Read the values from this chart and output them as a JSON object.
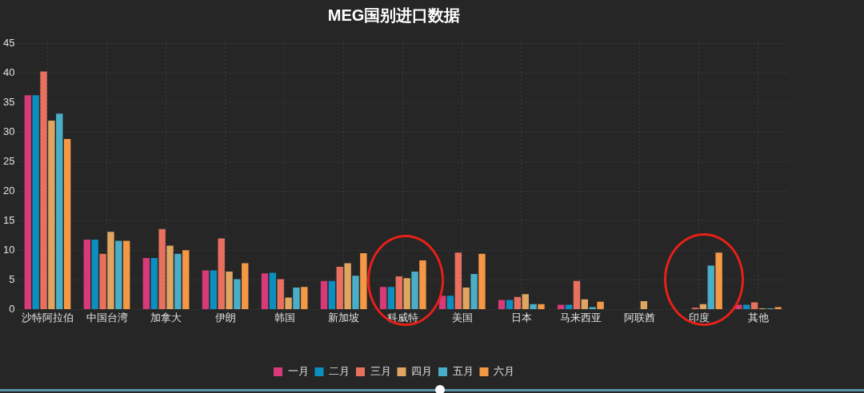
{
  "chart_data": {
    "type": "bar",
    "title": "MEG国别进口数据",
    "categories": [
      "沙特阿拉伯",
      "中国台湾",
      "加拿大",
      "伊朗",
      "韩国",
      "新加坡",
      "科威特",
      "美国",
      "日本",
      "马来西亚",
      "阿联酋",
      "印度",
      "其他"
    ],
    "series": [
      {
        "name": "一月",
        "color": "#d63a78",
        "values": [
          36.2,
          11.8,
          8.7,
          6.6,
          6.1,
          4.8,
          3.8,
          2.3,
          1.6,
          0.8,
          null,
          null,
          0.8
        ]
      },
      {
        "name": "二月",
        "color": "#0a8fc0",
        "values": [
          36.2,
          11.8,
          8.7,
          6.6,
          6.2,
          4.8,
          3.8,
          2.3,
          1.6,
          0.8,
          null,
          null,
          0.8
        ]
      },
      {
        "name": "三月",
        "color": "#e8705e",
        "values": [
          40.2,
          9.4,
          13.6,
          12.0,
          5.1,
          7.2,
          5.6,
          9.6,
          2.1,
          4.8,
          null,
          0.3,
          1.2
        ]
      },
      {
        "name": "四月",
        "color": "#e0a560",
        "values": [
          31.9,
          13.1,
          10.8,
          6.4,
          2.0,
          7.8,
          5.3,
          3.7,
          2.6,
          1.7,
          1.4,
          0.9,
          0.2
        ]
      },
      {
        "name": "五月",
        "color": "#4aaec8",
        "values": [
          33.1,
          11.6,
          9.4,
          5.1,
          3.7,
          5.7,
          6.4,
          6.0,
          0.9,
          0.4,
          null,
          7.4,
          0.2
        ]
      },
      {
        "name": "六月",
        "color": "#f59845",
        "values": [
          28.8,
          11.6,
          10.0,
          7.8,
          3.8,
          9.5,
          8.3,
          9.4,
          0.9,
          1.3,
          null,
          9.6,
          0.4
        ]
      }
    ],
    "ylim": [
      0,
      45
    ],
    "yticks": [
      0,
      5,
      10,
      15,
      20,
      25,
      30,
      35,
      40,
      45
    ],
    "grid": true,
    "legend": "bottom"
  }
}
